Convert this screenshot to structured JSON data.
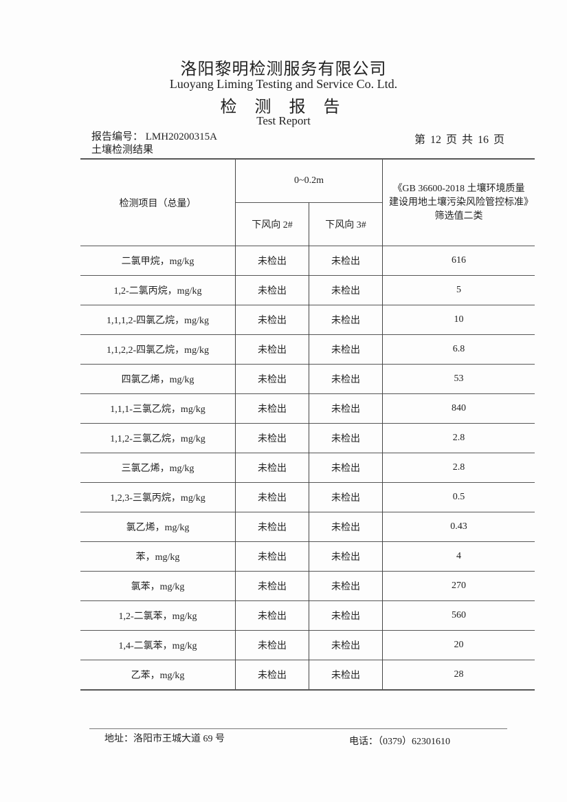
{
  "header": {
    "company_cn": "洛阳黎明检测服务有限公司",
    "company_en": "Luoyang Liming Testing and Service Co. Ltd.",
    "title_cn": "检 测 报 告",
    "title_en": "Test Report",
    "report_no": "报告编号： LMH20200315A",
    "page_no": "第 12 页 共 16 页",
    "section": "土壤检测结果"
  },
  "table": {
    "col_item": "检测项目（总量）",
    "depth": "0~0.2m",
    "col_s2": "下风向 2#",
    "col_s3": "下风向 3#",
    "col_std": "《GB 36600-2018 土壤环境质量 建设用地土壤污染风险管控标准》筛选值二类",
    "rows": [
      {
        "item": "二氯甲烷，mg/kg",
        "s2": "未检出",
        "s3": "未检出",
        "std": "616"
      },
      {
        "item": "1,2-二氯丙烷，mg/kg",
        "s2": "未检出",
        "s3": "未检出",
        "std": "5"
      },
      {
        "item": "1,1,1,2-四氯乙烷，mg/kg",
        "s2": "未检出",
        "s3": "未检出",
        "std": "10"
      },
      {
        "item": "1,1,2,2-四氯乙烷，mg/kg",
        "s2": "未检出",
        "s3": "未检出",
        "std": "6.8"
      },
      {
        "item": "四氯乙烯，mg/kg",
        "s2": "未检出",
        "s3": "未检出",
        "std": "53"
      },
      {
        "item": "1,1,1-三氯乙烷，mg/kg",
        "s2": "未检出",
        "s3": "未检出",
        "std": "840"
      },
      {
        "item": "1,1,2-三氯乙烷，mg/kg",
        "s2": "未检出",
        "s3": "未检出",
        "std": "2.8"
      },
      {
        "item": "三氯乙烯，mg/kg",
        "s2": "未检出",
        "s3": "未检出",
        "std": "2.8"
      },
      {
        "item": "1,2,3-三氯丙烷，mg/kg",
        "s2": "未检出",
        "s3": "未检出",
        "std": "0.5"
      },
      {
        "item": "氯乙烯，mg/kg",
        "s2": "未检出",
        "s3": "未检出",
        "std": "0.43"
      },
      {
        "item": "苯，mg/kg",
        "s2": "未检出",
        "s3": "未检出",
        "std": "4"
      },
      {
        "item": "氯苯，mg/kg",
        "s2": "未检出",
        "s3": "未检出",
        "std": "270"
      },
      {
        "item": "1,2-二氯苯，mg/kg",
        "s2": "未检出",
        "s3": "未检出",
        "std": "560"
      },
      {
        "item": "1,4-二氯苯，mg/kg",
        "s2": "未检出",
        "s3": "未检出",
        "std": "20"
      },
      {
        "item": "乙苯，mg/kg",
        "s2": "未检出",
        "s3": "未检出",
        "std": "28"
      }
    ]
  },
  "footer": {
    "address": "地址：洛阳市王城大道 69 号",
    "phone": "电话：（0379）62301610"
  }
}
